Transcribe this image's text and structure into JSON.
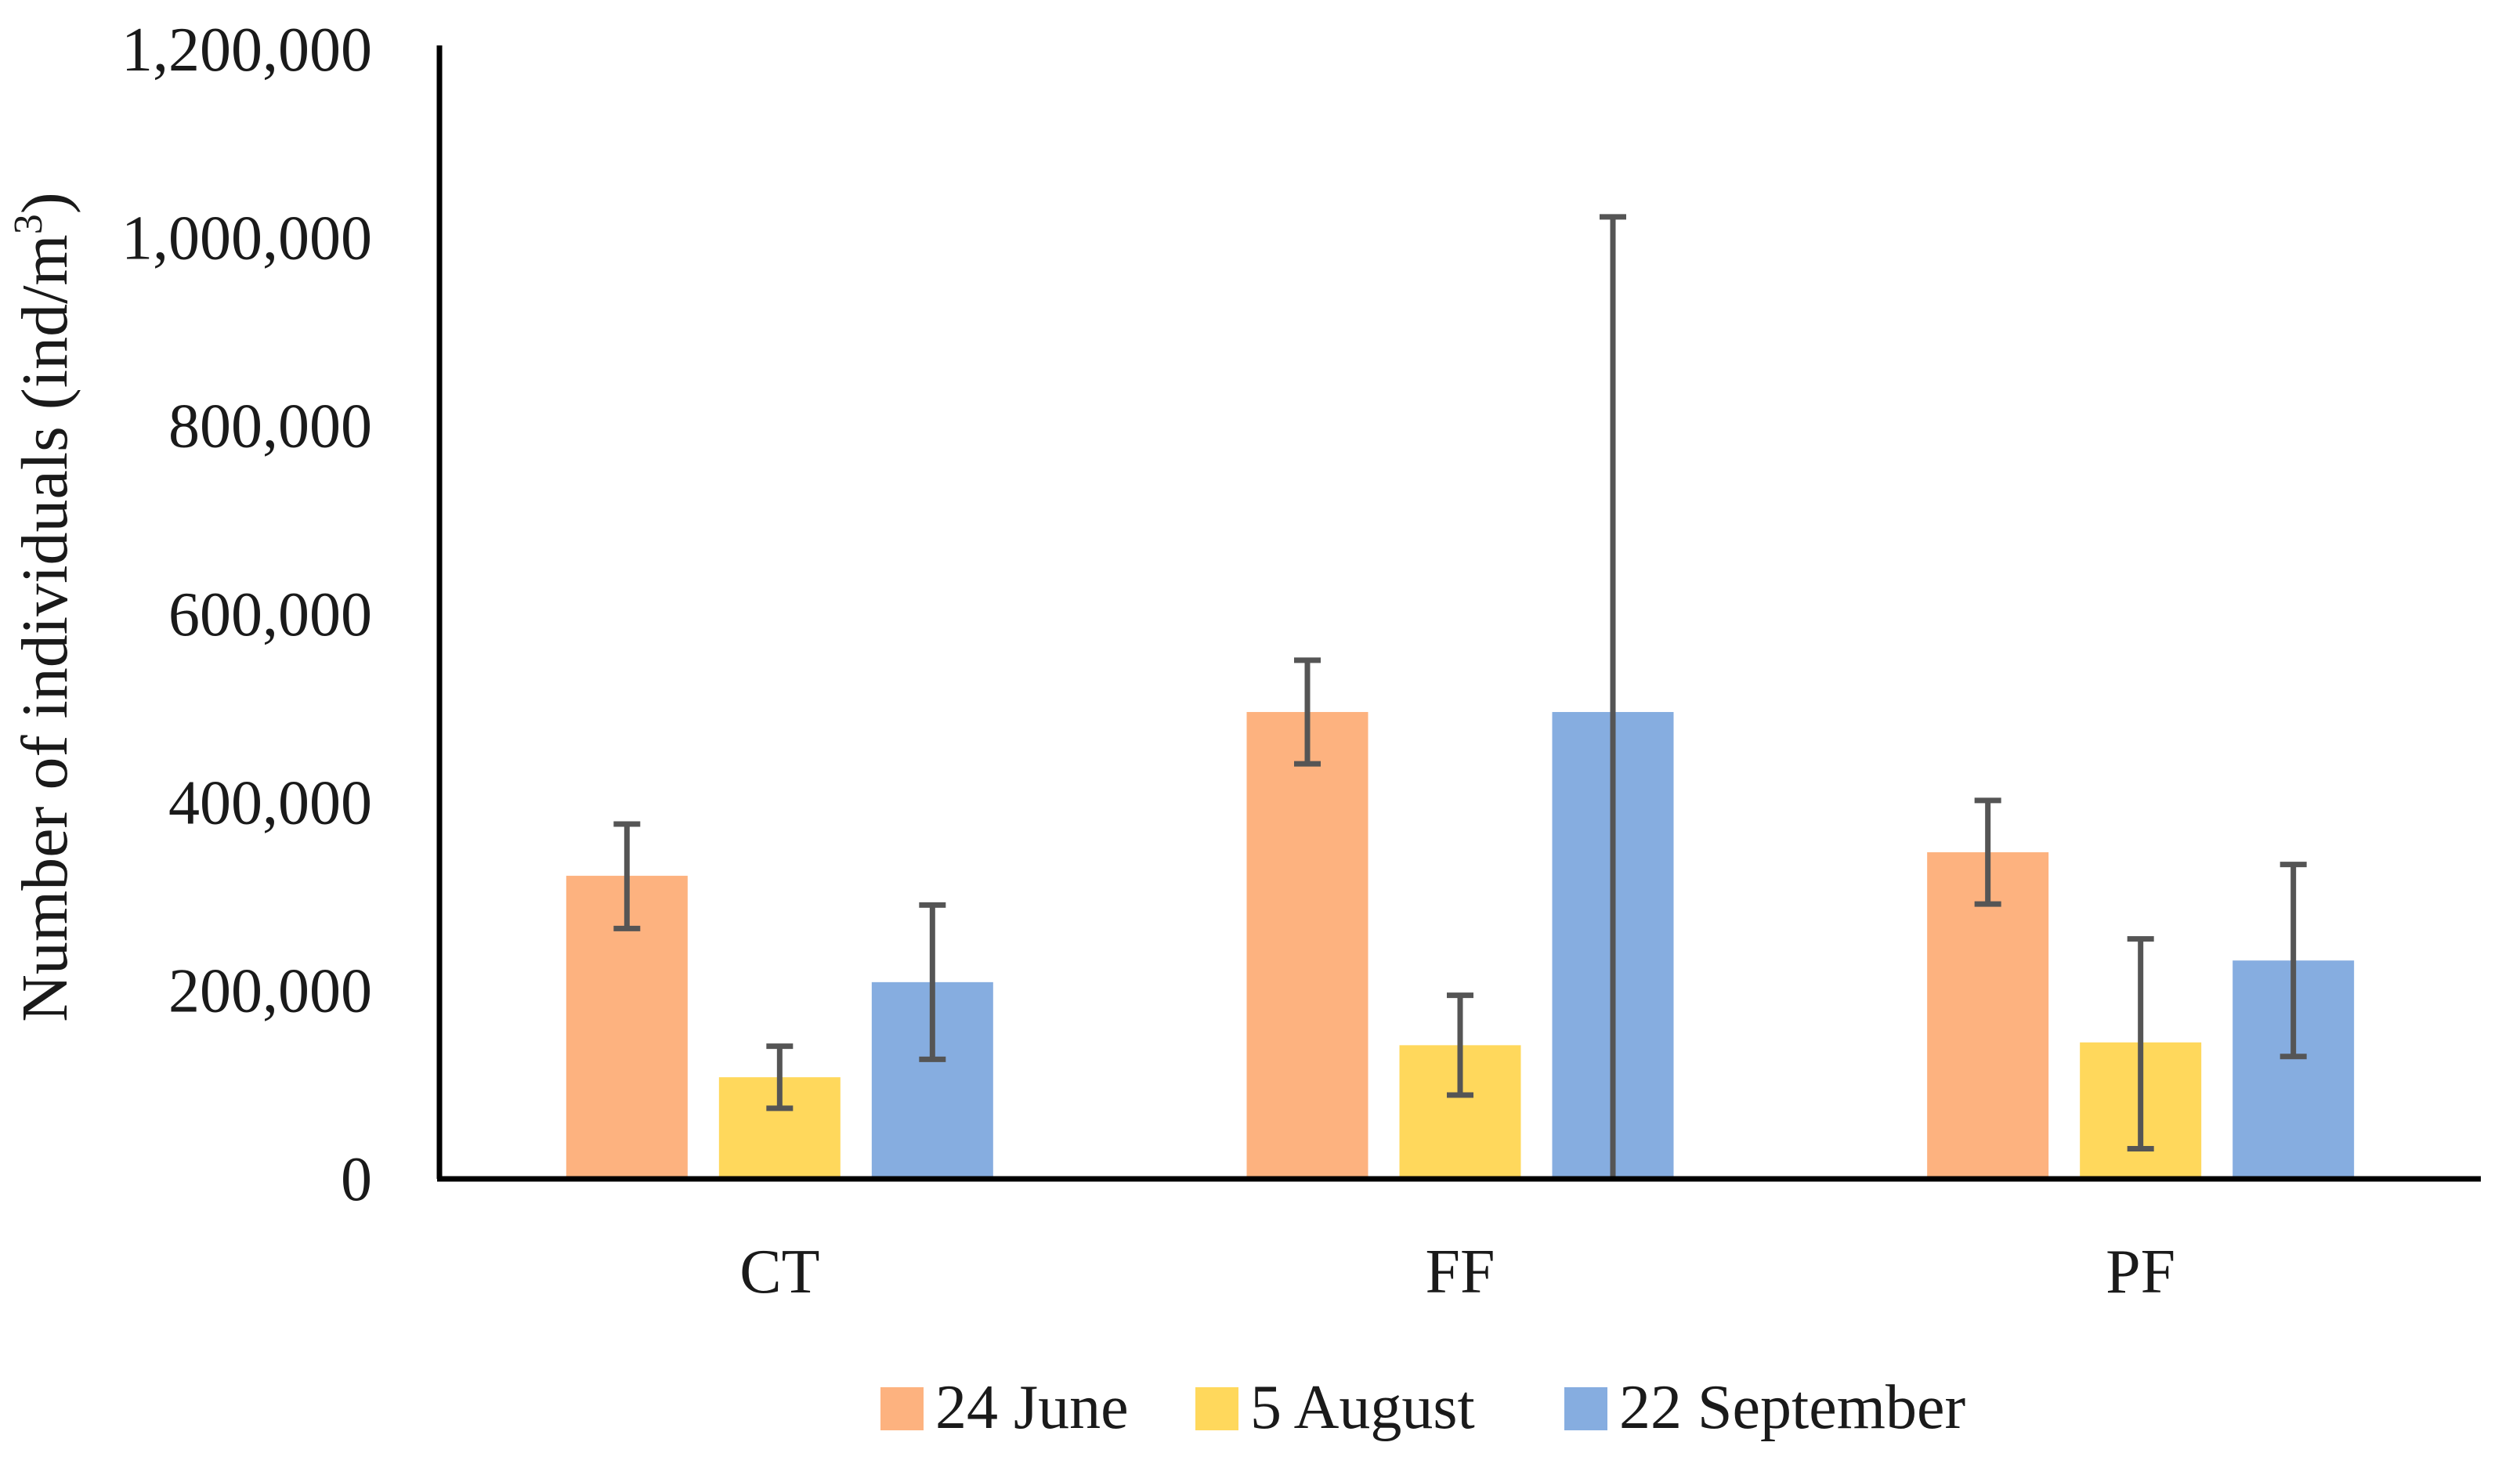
{
  "chart_data": {
    "type": "bar",
    "ylabel": "Number of individuals (ind/m",
    "ylabel_superscript": "3",
    "ylabel_close": ")",
    "ylim": [
      0,
      1200000
    ],
    "yticks": [
      0,
      200000,
      400000,
      600000,
      800000,
      1000000,
      1200000
    ],
    "ytick_labels": [
      "0",
      "200,000",
      "400,000",
      "600,000",
      "800,000",
      "1,000,000",
      "1,200,000"
    ],
    "categories": [
      "CT",
      "FF",
      "PF"
    ],
    "series": [
      {
        "name": "24 June",
        "color": "#FDB27F",
        "values": [
          322000,
          496000,
          347000
        ],
        "err_low": [
          266000,
          441000,
          292000
        ],
        "err_high": [
          377000,
          551000,
          402000
        ]
      },
      {
        "name": "5 August",
        "color": "#FFD85C",
        "values": [
          108000,
          142000,
          145000
        ],
        "err_low": [
          75000,
          89000,
          32000
        ],
        "err_high": [
          141000,
          195000,
          255000
        ]
      },
      {
        "name": "22 September",
        "color": "#86ADE0",
        "values": [
          209000,
          496000,
          232000
        ],
        "err_low": [
          127000,
          0,
          130000
        ],
        "err_high": [
          291000,
          1022000,
          334000
        ]
      }
    ],
    "legend_position": "bottom",
    "grid": false
  }
}
